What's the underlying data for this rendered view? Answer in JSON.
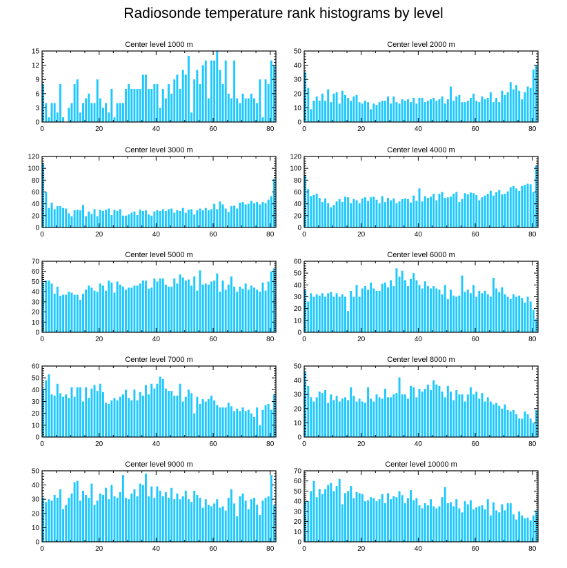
{
  "figure": {
    "title": "Radiosonde temperature rank histograms by level",
    "bar_color": "#1ec8ff",
    "axis_color": "#000000"
  },
  "chart_data": [
    {
      "type": "bar",
      "title": "Center level 1000 m",
      "xlabel": "",
      "ylabel": "",
      "xlim": [
        0,
        82
      ],
      "ylim": [
        0,
        15
      ],
      "xticks": [
        0,
        20,
        40,
        60,
        80
      ],
      "yticks": [
        0,
        3,
        6,
        9,
        12,
        15
      ],
      "x_start": 0,
      "values": [
        8,
        4,
        1,
        4,
        4,
        2,
        8,
        1,
        0,
        3,
        4,
        8,
        9,
        2,
        4,
        5,
        6,
        4,
        4,
        9,
        5,
        3,
        4,
        2,
        7,
        1,
        4,
        4,
        4,
        7,
        8,
        7,
        7,
        7,
        7,
        10,
        10,
        7,
        7,
        8,
        8,
        3,
        7,
        5,
        8,
        6,
        9,
        10,
        7,
        11,
        10,
        14,
        2,
        9,
        11,
        8,
        12,
        13,
        5,
        13,
        13,
        15,
        11,
        8,
        13,
        6,
        5,
        13,
        5,
        4,
        6,
        5,
        5,
        6,
        5,
        4,
        9,
        1,
        9,
        8,
        13,
        12
      ],
      "reading_note": "bar values estimated from the rendered figure"
    },
    {
      "type": "bar",
      "title": "Center level 2000 m",
      "xlabel": "",
      "ylabel": "",
      "xlim": [
        0,
        82
      ],
      "ylim": [
        0,
        50
      ],
      "xticks": [
        0,
        20,
        40,
        60,
        80
      ],
      "yticks": [
        0,
        10,
        20,
        30,
        40,
        50
      ],
      "x_start": 0,
      "values": [
        35,
        24,
        9,
        15,
        18,
        15,
        20,
        15,
        23,
        14,
        20,
        21,
        13,
        22,
        19,
        17,
        15,
        18,
        19,
        14,
        13,
        15,
        14,
        9,
        13,
        12,
        14,
        15,
        15,
        18,
        13,
        18,
        14,
        13,
        16,
        15,
        16,
        14,
        17,
        13,
        17,
        17,
        14,
        15,
        16,
        17,
        15,
        16,
        18,
        13,
        16,
        25,
        15,
        18,
        19,
        14,
        14,
        15,
        17,
        20,
        15,
        14,
        18,
        16,
        17,
        21,
        14,
        17,
        14,
        22,
        19,
        21,
        28,
        23,
        26,
        22,
        16,
        21,
        25,
        24,
        37,
        40
      ],
      "reading_note": "bar values estimated from the rendered figure"
    },
    {
      "type": "bar",
      "title": "Center level 3000 m",
      "xlabel": "",
      "ylabel": "",
      "xlim": [
        0,
        82
      ],
      "ylim": [
        0,
        120
      ],
      "xticks": [
        0,
        20,
        40,
        60,
        80
      ],
      "yticks": [
        0,
        20,
        40,
        60,
        80,
        100,
        120
      ],
      "x_start": 0,
      "values": [
        108,
        60,
        33,
        42,
        31,
        36,
        36,
        33,
        32,
        24,
        19,
        29,
        30,
        29,
        38,
        19,
        27,
        23,
        31,
        19,
        30,
        28,
        30,
        32,
        21,
        30,
        28,
        31,
        20,
        20,
        22,
        25,
        27,
        21,
        30,
        28,
        29,
        22,
        20,
        27,
        29,
        28,
        31,
        28,
        31,
        32,
        25,
        29,
        28,
        33,
        25,
        30,
        31,
        22,
        29,
        32,
        29,
        33,
        29,
        31,
        40,
        31,
        44,
        39,
        32,
        26,
        36,
        37,
        32,
        42,
        43,
        39,
        40,
        45,
        41,
        43,
        39,
        43,
        41,
        47,
        53,
        82
      ],
      "reading_note": "bar values estimated from the rendered figure"
    },
    {
      "type": "bar",
      "title": "Center level 4000 m",
      "xlabel": "",
      "ylabel": "",
      "xlim": [
        0,
        82
      ],
      "ylim": [
        0,
        120
      ],
      "xticks": [
        0,
        20,
        40,
        60,
        80
      ],
      "yticks": [
        0,
        20,
        40,
        60,
        80,
        100,
        120
      ],
      "x_start": 0,
      "values": [
        88,
        65,
        53,
        55,
        57,
        50,
        43,
        49,
        41,
        34,
        38,
        44,
        48,
        43,
        52,
        51,
        41,
        48,
        46,
        41,
        49,
        51,
        45,
        51,
        52,
        47,
        41,
        53,
        43,
        50,
        46,
        49,
        41,
        44,
        48,
        49,
        48,
        42,
        54,
        45,
        66,
        44,
        53,
        50,
        52,
        57,
        46,
        57,
        60,
        50,
        51,
        52,
        57,
        60,
        43,
        48,
        58,
        56,
        59,
        58,
        55,
        46,
        51,
        54,
        57,
        62,
        54,
        60,
        63,
        56,
        57,
        61,
        68,
        70,
        66,
        62,
        70,
        72,
        74,
        73,
        60,
        105
      ],
      "reading_note": "bar values estimated from the rendered figure"
    },
    {
      "type": "bar",
      "title": "Center level 5000 m",
      "xlabel": "",
      "ylabel": "",
      "xlim": [
        0,
        82
      ],
      "ylim": [
        0,
        70
      ],
      "xticks": [
        0,
        20,
        40,
        60,
        80
      ],
      "yticks": [
        0,
        10,
        20,
        30,
        40,
        50,
        60,
        70
      ],
      "x_start": 0,
      "values": [
        49,
        51,
        51,
        48,
        38,
        45,
        36,
        37,
        37,
        40,
        39,
        37,
        37,
        32,
        38,
        42,
        46,
        44,
        41,
        40,
        48,
        46,
        41,
        51,
        49,
        39,
        50,
        47,
        45,
        42,
        44,
        44,
        46,
        46,
        48,
        51,
        51,
        43,
        44,
        53,
        50,
        53,
        53,
        47,
        45,
        45,
        53,
        48,
        57,
        54,
        51,
        52,
        46,
        55,
        41,
        61,
        47,
        48,
        47,
        50,
        51,
        58,
        40,
        51,
        42,
        47,
        55,
        45,
        40,
        45,
        43,
        48,
        42,
        46,
        44,
        42,
        40,
        49,
        41,
        50,
        60,
        63
      ],
      "reading_note": "bar values estimated from the rendered figure"
    },
    {
      "type": "bar",
      "title": "Center level 6000 m",
      "xlabel": "",
      "ylabel": "",
      "xlim": [
        0,
        82
      ],
      "ylim": [
        0,
        60
      ],
      "xticks": [
        0,
        20,
        40,
        60,
        80
      ],
      "yticks": [
        0,
        10,
        20,
        30,
        40,
        50,
        60
      ],
      "x_start": 0,
      "values": [
        36,
        26,
        33,
        30,
        32,
        31,
        33,
        30,
        33,
        34,
        30,
        33,
        30,
        32,
        30,
        18,
        35,
        30,
        40,
        30,
        37,
        39,
        36,
        42,
        37,
        35,
        35,
        41,
        42,
        38,
        44,
        39,
        54,
        47,
        52,
        44,
        39,
        45,
        50,
        44,
        40,
        37,
        43,
        39,
        37,
        39,
        37,
        36,
        32,
        40,
        28,
        36,
        31,
        30,
        31,
        48,
        34,
        36,
        33,
        40,
        30,
        35,
        33,
        35,
        32,
        30,
        46,
        37,
        34,
        38,
        32,
        30,
        28,
        32,
        30,
        31,
        29,
        25,
        30,
        26,
        19,
        11
      ],
      "reading_note": "bar values estimated from the rendered figure"
    },
    {
      "type": "bar",
      "title": "Center level 7000 m",
      "xlabel": "",
      "ylabel": "",
      "xlim": [
        0,
        82
      ],
      "ylim": [
        0,
        60
      ],
      "xticks": [
        0,
        20,
        40,
        60,
        80
      ],
      "yticks": [
        0,
        10,
        20,
        30,
        40,
        50,
        60
      ],
      "x_start": 0,
      "values": [
        41,
        48,
        53,
        36,
        35,
        45,
        37,
        34,
        36,
        33,
        42,
        34,
        42,
        42,
        30,
        42,
        33,
        41,
        44,
        39,
        45,
        38,
        29,
        28,
        31,
        33,
        31,
        34,
        36,
        40,
        33,
        31,
        40,
        31,
        38,
        35,
        44,
        36,
        45,
        41,
        45,
        51,
        49,
        41,
        39,
        39,
        35,
        35,
        45,
        30,
        34,
        40,
        37,
        20,
        34,
        28,
        32,
        30,
        32,
        35,
        31,
        27,
        25,
        25,
        25,
        29,
        26,
        22,
        24,
        22,
        25,
        22,
        23,
        20,
        17,
        25,
        10,
        23,
        27,
        28,
        23,
        36
      ],
      "reading_note": "bar values estimated from the rendered figure"
    },
    {
      "type": "bar",
      "title": "Center level 8000 m",
      "xlabel": "",
      "ylabel": "",
      "xlim": [
        0,
        82
      ],
      "ylim": [
        0,
        50
      ],
      "xticks": [
        0,
        20,
        40,
        60,
        80
      ],
      "yticks": [
        0,
        10,
        20,
        30,
        40,
        50
      ],
      "x_start": 0,
      "values": [
        46,
        36,
        28,
        25,
        28,
        32,
        31,
        33,
        24,
        30,
        26,
        29,
        25,
        27,
        28,
        26,
        35,
        29,
        25,
        27,
        25,
        24,
        35,
        27,
        25,
        30,
        28,
        27,
        34,
        28,
        28,
        30,
        31,
        42,
        30,
        30,
        27,
        36,
        35,
        28,
        34,
        32,
        34,
        37,
        33,
        40,
        37,
        36,
        32,
        28,
        36,
        32,
        26,
        33,
        30,
        30,
        25,
        30,
        35,
        30,
        32,
        27,
        31,
        25,
        28,
        25,
        23,
        24,
        22,
        20,
        23,
        19,
        18,
        19,
        16,
        13,
        13,
        18,
        16,
        13,
        10,
        19
      ],
      "reading_note": "bar values estimated from the rendered figure"
    },
    {
      "type": "bar",
      "title": "Center level 9000 m",
      "xlabel": "",
      "ylabel": "",
      "xlim": [
        0,
        82
      ],
      "ylim": [
        0,
        50
      ],
      "xticks": [
        0,
        20,
        40,
        60,
        80
      ],
      "yticks": [
        0,
        10,
        20,
        30,
        40,
        50
      ],
      "x_start": 0,
      "values": [
        31,
        28,
        30,
        29,
        33,
        31,
        37,
        23,
        26,
        31,
        34,
        42,
        43,
        29,
        36,
        33,
        31,
        41,
        26,
        29,
        34,
        33,
        38,
        30,
        40,
        32,
        31,
        35,
        47,
        31,
        30,
        34,
        37,
        32,
        41,
        40,
        48,
        32,
        39,
        31,
        39,
        36,
        32,
        35,
        31,
        38,
        30,
        34,
        30,
        32,
        36,
        30,
        28,
        36,
        33,
        31,
        24,
        30,
        26,
        25,
        27,
        30,
        24,
        25,
        22,
        31,
        37,
        27,
        18,
        32,
        34,
        29,
        23,
        30,
        31,
        26,
        19,
        29,
        31,
        32,
        47,
        26
      ],
      "reading_note": "bar values estimated from the rendered figure"
    },
    {
      "type": "bar",
      "title": "Center level 10000 m",
      "xlabel": "",
      "ylabel": "",
      "xlim": [
        0,
        82
      ],
      "ylim": [
        0,
        70
      ],
      "xticks": [
        0,
        20,
        40,
        60,
        80
      ],
      "yticks": [
        0,
        10,
        20,
        30,
        40,
        50,
        60,
        70
      ],
      "x_start": 0,
      "values": [
        40,
        40,
        50,
        60,
        44,
        52,
        47,
        52,
        56,
        58,
        50,
        55,
        62,
        37,
        48,
        50,
        55,
        43,
        49,
        48,
        47,
        40,
        41,
        44,
        43,
        40,
        42,
        47,
        38,
        48,
        42,
        45,
        44,
        50,
        46,
        38,
        43,
        51,
        41,
        43,
        36,
        33,
        38,
        36,
        42,
        35,
        33,
        35,
        44,
        54,
        38,
        39,
        35,
        42,
        33,
        29,
        40,
        37,
        41,
        32,
        34,
        35,
        36,
        32,
        42,
        26,
        39,
        31,
        29,
        37,
        31,
        38,
        38,
        27,
        22,
        30,
        26,
        23,
        24,
        21,
        26,
        31
      ],
      "reading_note": "bar values estimated from the rendered figure"
    }
  ]
}
